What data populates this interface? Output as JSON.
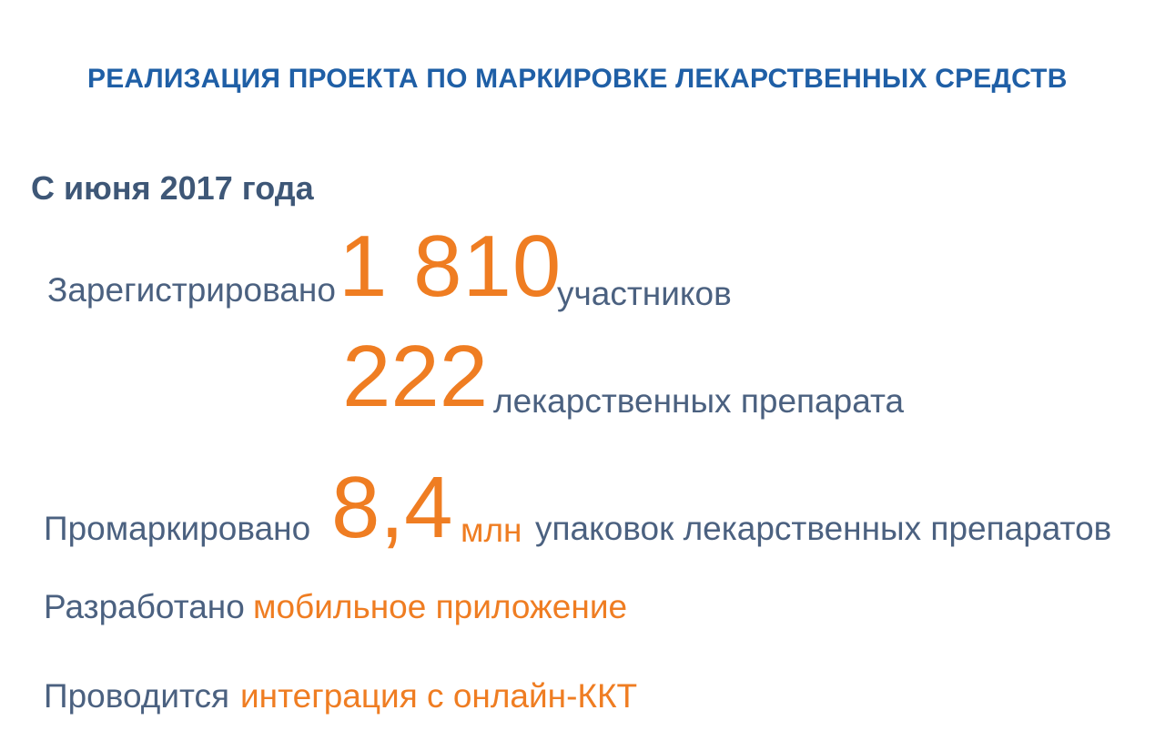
{
  "slide": {
    "title": "РЕАЛИЗАЦИЯ ПРОЕКТА ПО МАРКИРОВКЕ ЛЕКАРСТВЕННЫХ СРЕДСТВ",
    "subtitle": "С июня 2017 года",
    "stats": [
      {
        "label": "Зарегистрировано",
        "value": "1 810",
        "unit": "участников"
      },
      {
        "label": "",
        "value": "222",
        "unit": "лекарственных препарата"
      },
      {
        "label": "Промаркировано",
        "value": "8,4",
        "unit_accent": "млн",
        "unit": "упаковок лекарственных препаратов"
      },
      {
        "label": "Разработано",
        "value": "мобильное приложение"
      },
      {
        "label": "Проводится",
        "value": "интеграция с онлайн-ККТ"
      }
    ],
    "colors": {
      "title": "#1f5fa6",
      "text": "#4b6180",
      "accent": "#ef7d22",
      "background": "#ffffff"
    }
  }
}
